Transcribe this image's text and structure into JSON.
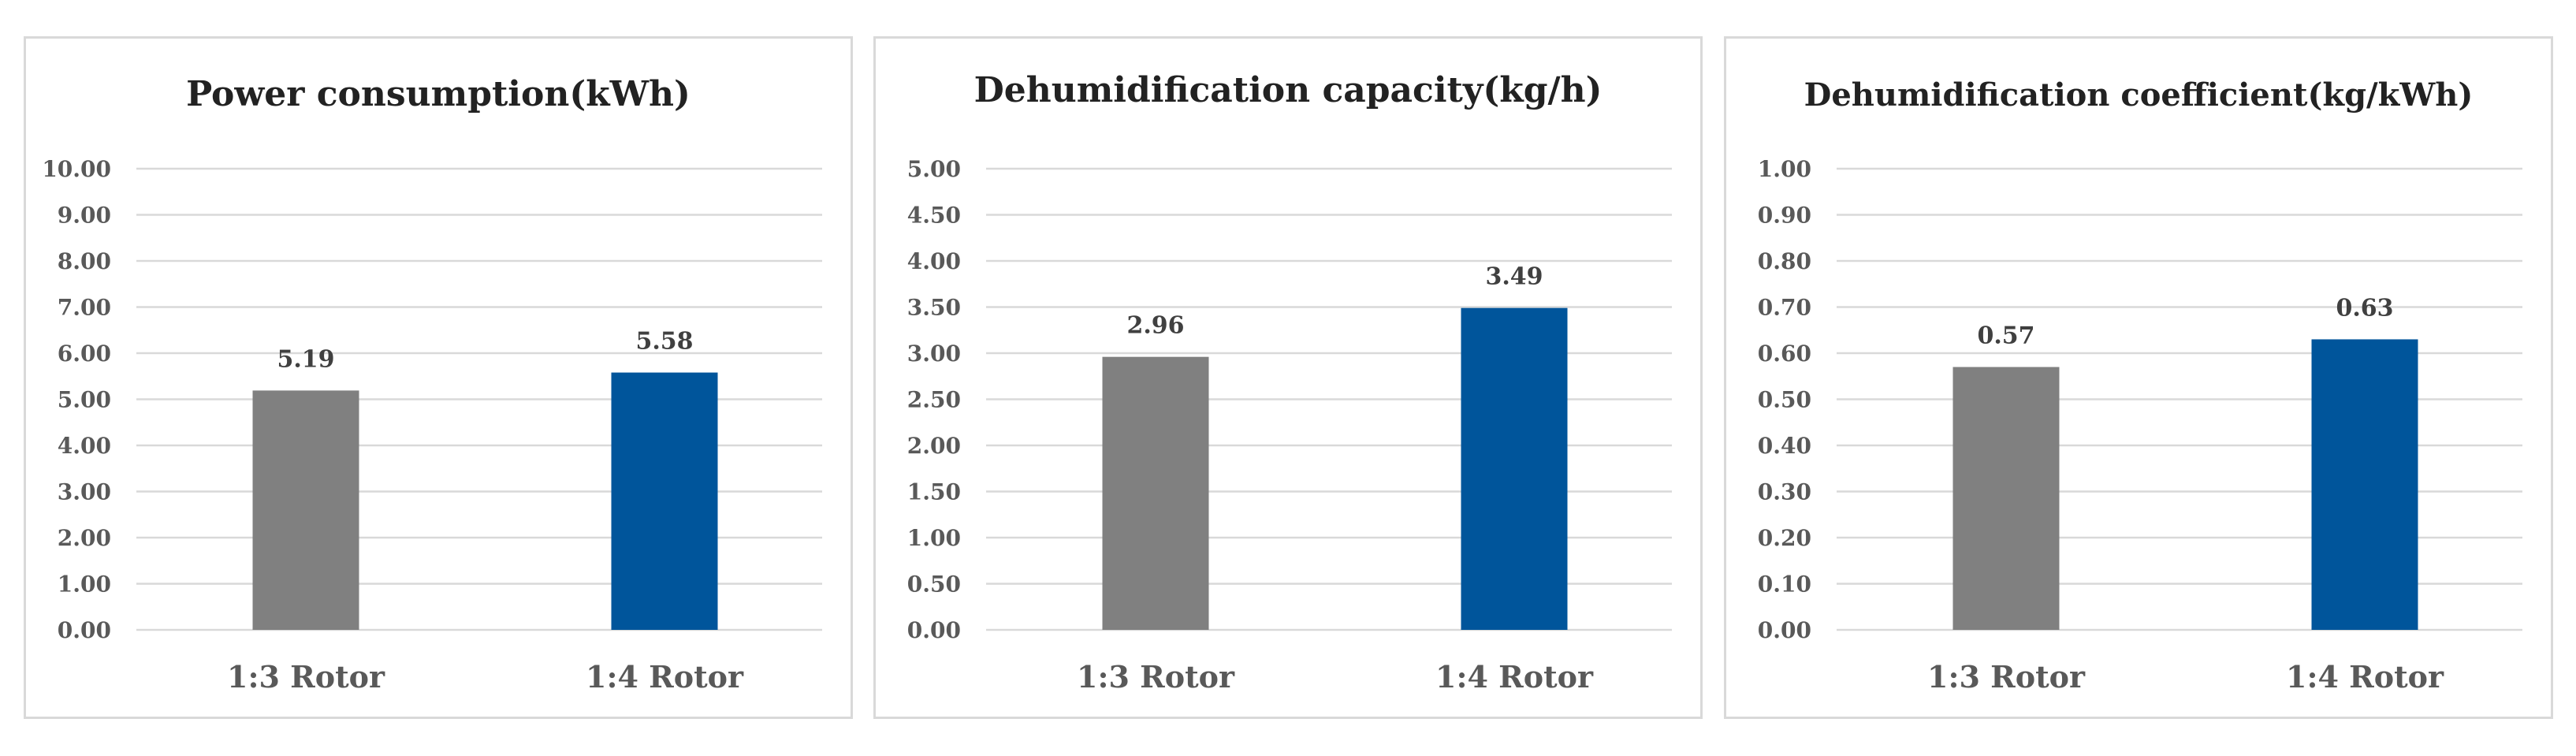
{
  "chart_data": [
    {
      "type": "bar",
      "title": "Power consumption(kWh)",
      "categories": [
        "1:3 Rotor",
        "1:4 Rotor"
      ],
      "values": [
        5.19,
        5.58
      ],
      "value_labels": [
        "5.19",
        "5.58"
      ],
      "ylim": [
        0,
        10
      ],
      "y_ticks": [
        "0.00",
        "1.00",
        "2.00",
        "3.00",
        "4.00",
        "5.00",
        "6.00",
        "7.00",
        "8.00",
        "9.00",
        "10.00"
      ],
      "bar_colors": [
        "#808080",
        "#00559b"
      ],
      "grid": true,
      "legend": "none"
    },
    {
      "type": "bar",
      "title": "Dehumidification capacity(kg/h)",
      "categories": [
        "1:3 Rotor",
        "1:4 Rotor"
      ],
      "values": [
        2.96,
        3.49
      ],
      "value_labels": [
        "2.96",
        "3.49"
      ],
      "ylim": [
        0,
        5
      ],
      "y_ticks": [
        "0.00",
        "0.50",
        "1.00",
        "1.50",
        "2.00",
        "2.50",
        "3.00",
        "3.50",
        "4.00",
        "4.50",
        "5.00"
      ],
      "bar_colors": [
        "#808080",
        "#00559b"
      ],
      "grid": true,
      "legend": "none"
    },
    {
      "type": "bar",
      "title": "Dehumidification coefficient(kg/kWh)",
      "categories": [
        "1:3 Rotor",
        "1:4 Rotor"
      ],
      "values": [
        0.57,
        0.63
      ],
      "value_labels": [
        "0.57",
        "0.63"
      ],
      "ylim": [
        0,
        1
      ],
      "y_ticks": [
        "0.00",
        "0.10",
        "0.20",
        "0.30",
        "0.40",
        "0.50",
        "0.60",
        "0.70",
        "0.80",
        "0.90",
        "1.00"
      ],
      "bar_colors": [
        "#808080",
        "#00559b"
      ],
      "grid": true,
      "legend": "none"
    }
  ]
}
